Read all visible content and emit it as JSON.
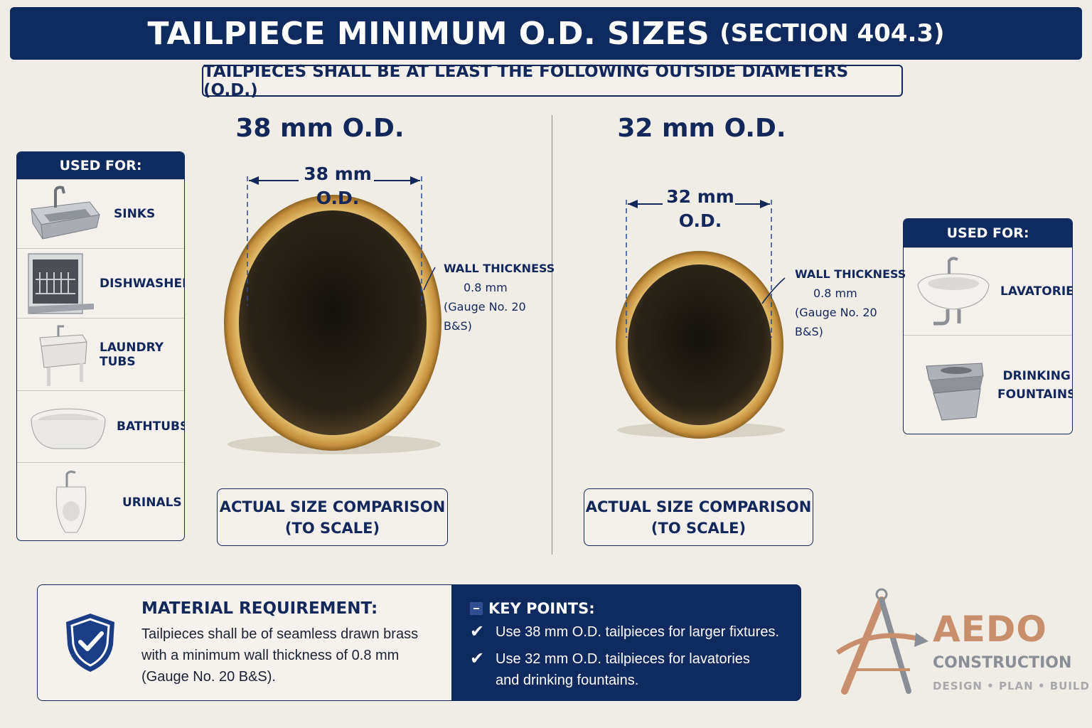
{
  "header": {
    "title": "TAILPIECE MINIMUM O.D. SIZES",
    "section": "(SECTION 404.3)",
    "subtitle": "TAILPIECES SHALL BE AT LEAST THE FOLLOWING OUTSIDE DIAMETERS (O.D.)"
  },
  "left_size": {
    "heading": "38 mm O.D.",
    "dim_line1": "38 mm",
    "dim_line2": "O.D.",
    "wall_line1": "WALL THICKNESS",
    "wall_line2": "0.8 mm",
    "wall_line3": "(Gauge No. 20 B&S)",
    "scale_line1": "ACTUAL SIZE COMPARISON",
    "scale_line2": "(TO SCALE)",
    "outer_diameter_mm": 38
  },
  "right_size": {
    "heading": "32 mm O.D.",
    "dim_line1": "32 mm",
    "dim_line2": "O.D.",
    "wall_line1": "WALL THICKNESS",
    "wall_line2": "0.8 mm",
    "wall_line3": "(Gauge No. 20 B&S)",
    "scale_line1": "ACTUAL SIZE COMPARISON",
    "scale_line2": "(TO SCALE)",
    "outer_diameter_mm": 32
  },
  "left_panel": {
    "heading": "USED FOR:",
    "items": [
      {
        "label": "SINKS",
        "icon": "sink-icon"
      },
      {
        "label": "DISHWASHERS",
        "icon": "dishwasher-icon"
      },
      {
        "label": "LAUNDRY TUBS",
        "icon": "laundry-tub-icon"
      },
      {
        "label": "BATHTUBS",
        "icon": "bathtub-icon"
      },
      {
        "label": "URINALS",
        "icon": "urinal-icon"
      }
    ]
  },
  "right_panel": {
    "heading": "USED FOR:",
    "items": [
      {
        "label": "LAVATORIES",
        "icon": "lavatory-icon"
      },
      {
        "label_line1": "DRINKING",
        "label_line2": "FOUNTAINS",
        "icon": "drinking-fountain-icon"
      }
    ]
  },
  "material": {
    "title": "MATERIAL REQUIREMENT:",
    "line1": "Tailpieces shall be of seamless drawn brass",
    "line2": "with a minimum wall thickness of 0.8 mm",
    "line3": "(Gauge No. 20 B&S).",
    "icon": "shield-check-icon"
  },
  "key_points": {
    "title": "KEY POINTS:",
    "point1": "Use 38 mm O.D. tailpieces for larger fixtures.",
    "point2_line1": "Use 32 mm O.D. tailpieces for lavatories",
    "point2_line2": "and drinking fountains."
  },
  "logo": {
    "name": "AEDO",
    "sub": "CONSTRUCTION",
    "tagline": "DESIGN • PLAN • BUILD",
    "icon": "compass-a-icon"
  },
  "colors": {
    "navy": "#0f2a5f",
    "brass": "#c99a4a",
    "background": "#f0ece6",
    "logo_copper": "#c98e6c"
  }
}
